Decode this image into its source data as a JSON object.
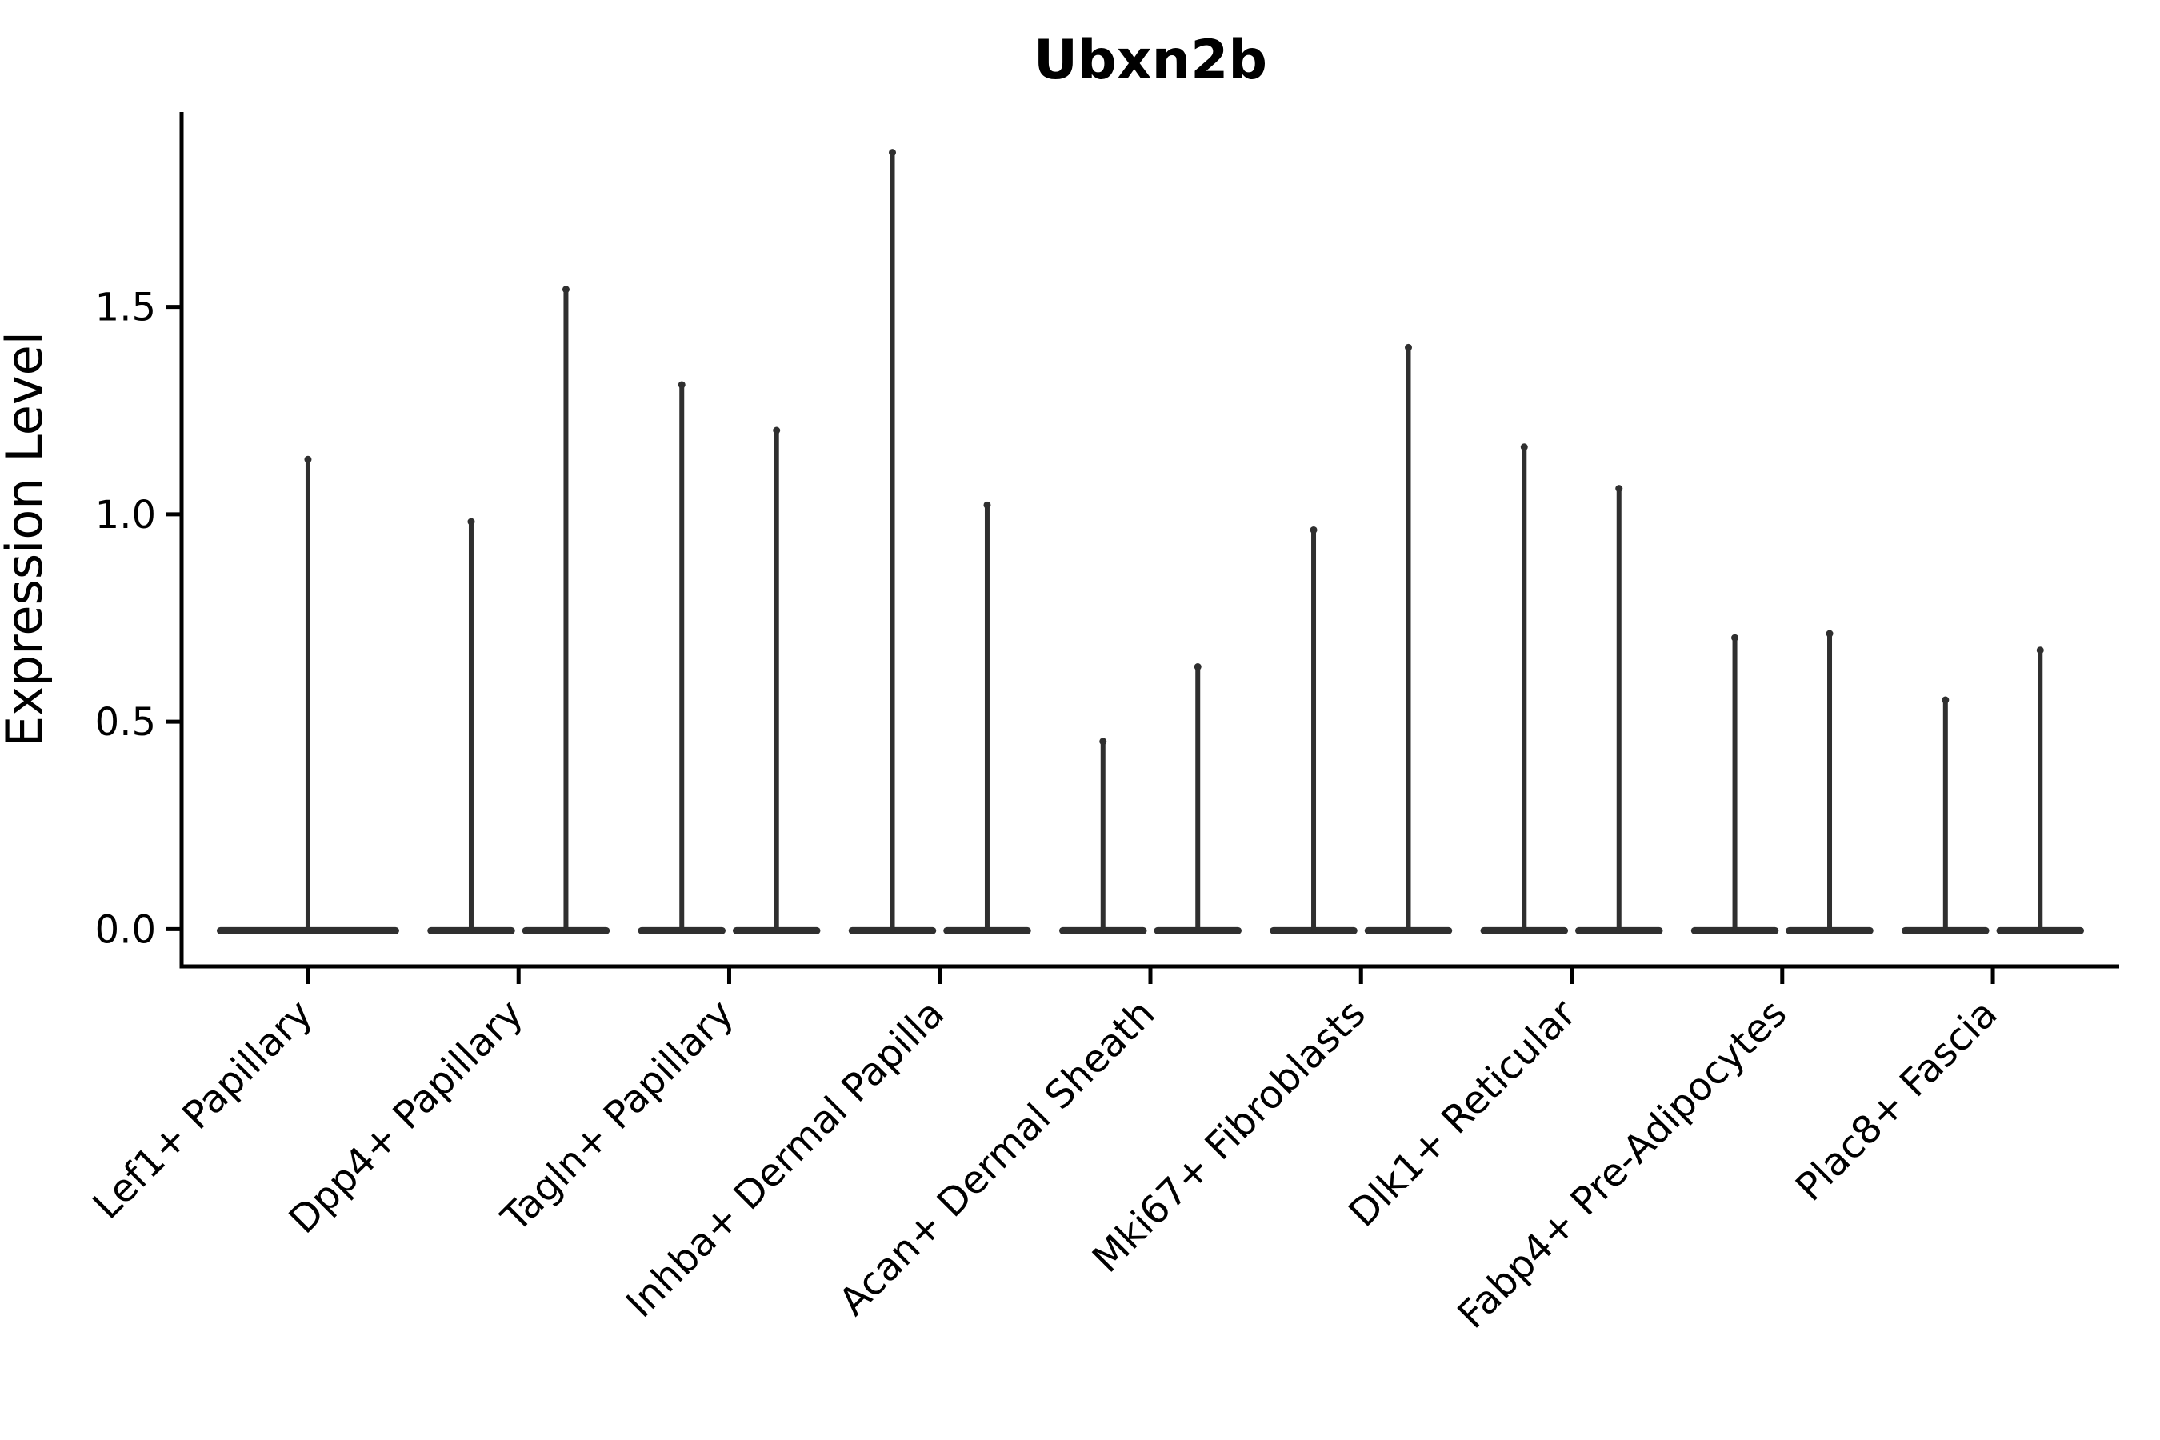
{
  "page": {
    "background": "#ffffff"
  },
  "chart": {
    "title": "Ubxn2b",
    "ylabel": "Expression Level"
  },
  "chart_data": {
    "type": "violin",
    "title": "Ubxn2b",
    "xlabel": "",
    "ylabel": "Expression Level",
    "ylim": [
      -0.09,
      1.97
    ],
    "yticks": [
      0.0,
      0.5,
      1.0,
      1.5
    ],
    "ytick_labels": [
      "0.0",
      "0.5",
      "1.0",
      "1.5"
    ],
    "grid": false,
    "legend": "none",
    "categories": [
      "Lef1+ Papillary",
      "Dpp4+ Papillary",
      "Tagln+ Papillary",
      "Inhba+ Dermal Papilla",
      "Acan+ Dermal Sheath",
      "Mki67+ Fibroblasts",
      "Dlk1+ Reticular",
      "Fabp4+ Pre-Adipocytes",
      "Plac8+ Fascia"
    ],
    "series": [
      {
        "category": "Lef1+ Papillary",
        "violin_maxima": [
          1.14
        ]
      },
      {
        "category": "Dpp4+ Papillary",
        "violin_maxima": [
          0.99,
          1.55
        ]
      },
      {
        "category": "Tagln+ Papillary",
        "violin_maxima": [
          1.32,
          1.21
        ]
      },
      {
        "category": "Inhba+ Dermal Papilla",
        "violin_maxima": [
          1.88,
          1.03
        ]
      },
      {
        "category": "Acan+ Dermal Sheath",
        "violin_maxima": [
          0.46,
          0.64
        ]
      },
      {
        "category": "Mki67+ Fibroblasts",
        "violin_maxima": [
          0.97,
          1.41
        ]
      },
      {
        "category": "Dlk1+ Reticular",
        "violin_maxima": [
          1.17,
          1.07
        ]
      },
      {
        "category": "Fabp4+ Pre-Adipocytes",
        "violin_maxima": [
          0.71,
          0.72
        ]
      },
      {
        "category": "Plac8+ Fascia",
        "violin_maxima": [
          0.56,
          0.68
        ]
      }
    ],
    "shape_note": "Every violin is extremely bottom-heavy: a wide flat density mass at expression level 0 with a single thin spike rising to the violin maximum.",
    "colors": {
      "violin_stroke": "#2f2f2f",
      "axis": "#000000",
      "text": "#000000"
    }
  }
}
